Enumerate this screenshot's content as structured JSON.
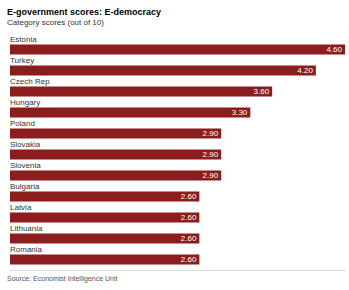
{
  "chart_data": {
    "type": "bar",
    "orientation": "horizontal",
    "title": "E-government scores: E-democracy",
    "subtitle": "Category scores (out of 10)",
    "source": "Source: Economist Intelligence Unit",
    "categories": [
      "Estonia",
      "Turkey",
      "Czech Rep",
      "Hungary",
      "Poland",
      "Slovakia",
      "Slovenia",
      "Bulgaria",
      "Latvia",
      "Lithuania",
      "Romania"
    ],
    "values": [
      4.6,
      4.2,
      3.6,
      3.3,
      2.9,
      2.9,
      2.9,
      2.6,
      2.6,
      2.6,
      2.6
    ],
    "value_labels": [
      "4.60",
      "4.20",
      "3.60",
      "3.30",
      "2.90",
      "2.90",
      "2.90",
      "2.60",
      "2.60",
      "2.60",
      "2.60"
    ],
    "color": "#8b1d1d",
    "xlim": [
      0,
      4.6
    ],
    "grid": false,
    "data_labels": true,
    "tick_labels": "y"
  }
}
